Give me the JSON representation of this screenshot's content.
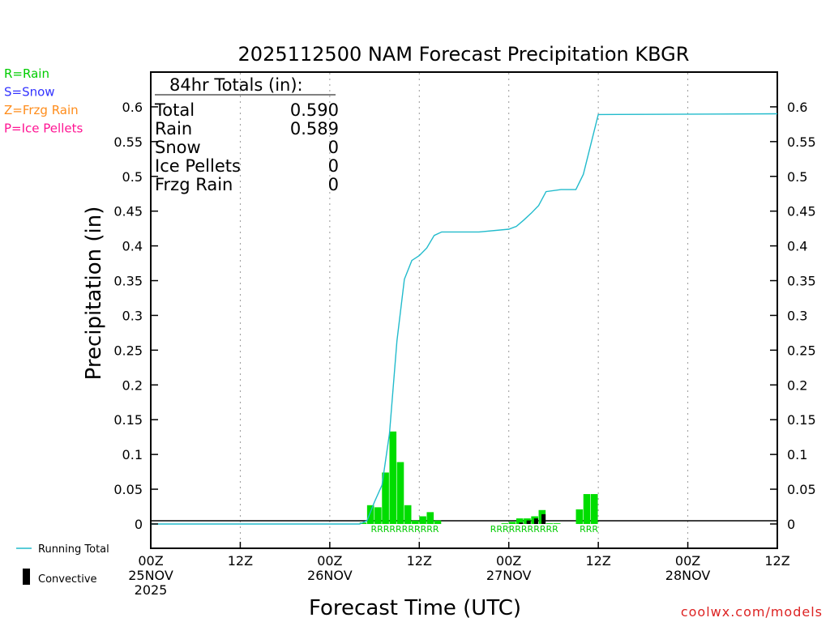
{
  "precip_legend": [
    {
      "text": "R=Rain",
      "color": "#00cc00"
    },
    {
      "text": "S=Snow",
      "color": "#3333ff"
    },
    {
      "text": "Z=Frzg Rain",
      "color": "#ff8c1a"
    },
    {
      "text": "P=Ice Pellets",
      "color": "#ff1493"
    }
  ],
  "totals": {
    "header": "84hr Totals (in):",
    "rows": [
      {
        "label": "Total",
        "value": "0.590"
      },
      {
        "label": "Rain",
        "value": "0.589"
      },
      {
        "label": "Snow",
        "value": "0"
      },
      {
        "label": "Ice Pellets",
        "value": "0"
      },
      {
        "label": "Frzg Rain",
        "value": "0"
      }
    ]
  },
  "series_legend": {
    "running_total": "Running Total",
    "convective": "Convective"
  },
  "watermark": "coolwx.com/models",
  "colors": {
    "bar": "#00dd00",
    "convective": "#000000",
    "line": "#22bbcc",
    "ptype": "#00cc00"
  },
  "chart_data": {
    "type": "bar",
    "title": "2025112500 NAM Forecast Precipitation KBGR",
    "xlabel": "Forecast Time (UTC)",
    "ylabel": "Precipitation (in)",
    "x_unit": "forecast hour",
    "xlim": [
      0,
      84
    ],
    "ylim": [
      -0.035,
      0.65
    ],
    "yticks": [
      0,
      0.05,
      0.1,
      0.15,
      0.2,
      0.25,
      0.3,
      0.35,
      0.4,
      0.45,
      0.5,
      0.55,
      0.6
    ],
    "ytick_labels": [
      "0",
      "0.05",
      "0.1",
      "0.15",
      "0.2",
      "0.25",
      "0.3",
      "0.35",
      "0.4",
      "0.45",
      "0.5",
      "0.55",
      "0.6"
    ],
    "xticks": [
      {
        "x": 0,
        "lines": [
          "00Z",
          "25NOV",
          "2025"
        ]
      },
      {
        "x": 12,
        "lines": [
          "12Z"
        ]
      },
      {
        "x": 24,
        "lines": [
          "00Z",
          "26NOV"
        ]
      },
      {
        "x": 36,
        "lines": [
          "12Z"
        ]
      },
      {
        "x": 48,
        "lines": [
          "00Z",
          "27NOV"
        ]
      },
      {
        "x": 60,
        "lines": [
          "12Z"
        ]
      },
      {
        "x": 72,
        "lines": [
          "00Z",
          "28NOV"
        ]
      },
      {
        "x": 84,
        "lines": [
          "12Z"
        ]
      }
    ],
    "grid_x": [
      12,
      24,
      36,
      48,
      60,
      72
    ],
    "grid": "vertical dotted",
    "bar_width_hours": 1,
    "bars": [
      {
        "hour": 29,
        "value": 0.002
      },
      {
        "hour": 30,
        "value": 0.027
      },
      {
        "hour": 31,
        "value": 0.024
      },
      {
        "hour": 32,
        "value": 0.074
      },
      {
        "hour": 33,
        "value": 0.133
      },
      {
        "hour": 34,
        "value": 0.089
      },
      {
        "hour": 35,
        "value": 0.027
      },
      {
        "hour": 36,
        "value": 0.005
      },
      {
        "hour": 37,
        "value": 0.011
      },
      {
        "hour": 38,
        "value": 0.017
      },
      {
        "hour": 39,
        "value": 0.005
      },
      {
        "hour": 48,
        "value": 0.001
      },
      {
        "hour": 49,
        "value": 0.003
      },
      {
        "hour": 50,
        "value": 0.008,
        "convective": 0.002
      },
      {
        "hour": 51,
        "value": 0.008,
        "convective": 0.005
      },
      {
        "hour": 52,
        "value": 0.011,
        "convective": 0.008
      },
      {
        "hour": 53,
        "value": 0.02,
        "convective": 0.014
      },
      {
        "hour": 54,
        "value": 0.001
      },
      {
        "hour": 55,
        "value": 0.001
      },
      {
        "hour": 58,
        "value": 0.021
      },
      {
        "hour": 59,
        "value": 0.043
      },
      {
        "hour": 60,
        "value": 0.043
      }
    ],
    "running_total": [
      {
        "hour": 0,
        "value": 0
      },
      {
        "hour": 28,
        "value": 0
      },
      {
        "hour": 29,
        "value": 0.005
      },
      {
        "hour": 30,
        "value": 0.032
      },
      {
        "hour": 31,
        "value": 0.056
      },
      {
        "hour": 32,
        "value": 0.13
      },
      {
        "hour": 33,
        "value": 0.263
      },
      {
        "hour": 34,
        "value": 0.352
      },
      {
        "hour": 35,
        "value": 0.379
      },
      {
        "hour": 36,
        "value": 0.386
      },
      {
        "hour": 37,
        "value": 0.397
      },
      {
        "hour": 38,
        "value": 0.415
      },
      {
        "hour": 39,
        "value": 0.42
      },
      {
        "hour": 44,
        "value": 0.42
      },
      {
        "hour": 48,
        "value": 0.424
      },
      {
        "hour": 49,
        "value": 0.428
      },
      {
        "hour": 50,
        "value": 0.437
      },
      {
        "hour": 51,
        "value": 0.447
      },
      {
        "hour": 52,
        "value": 0.458
      },
      {
        "hour": 53,
        "value": 0.478
      },
      {
        "hour": 55,
        "value": 0.481
      },
      {
        "hour": 57,
        "value": 0.481
      },
      {
        "hour": 58,
        "value": 0.503
      },
      {
        "hour": 59,
        "value": 0.546
      },
      {
        "hour": 60,
        "value": 0.589
      },
      {
        "hour": 84,
        "value": 0.59
      }
    ],
    "ptype_labels": [
      {
        "start_hour": 29.5,
        "text": "RRRRRRRRRRR"
      },
      {
        "start_hour": 45.5,
        "text": "RRRRRRRRRRR"
      },
      {
        "start_hour": 57.5,
        "text": "RRR"
      }
    ]
  }
}
